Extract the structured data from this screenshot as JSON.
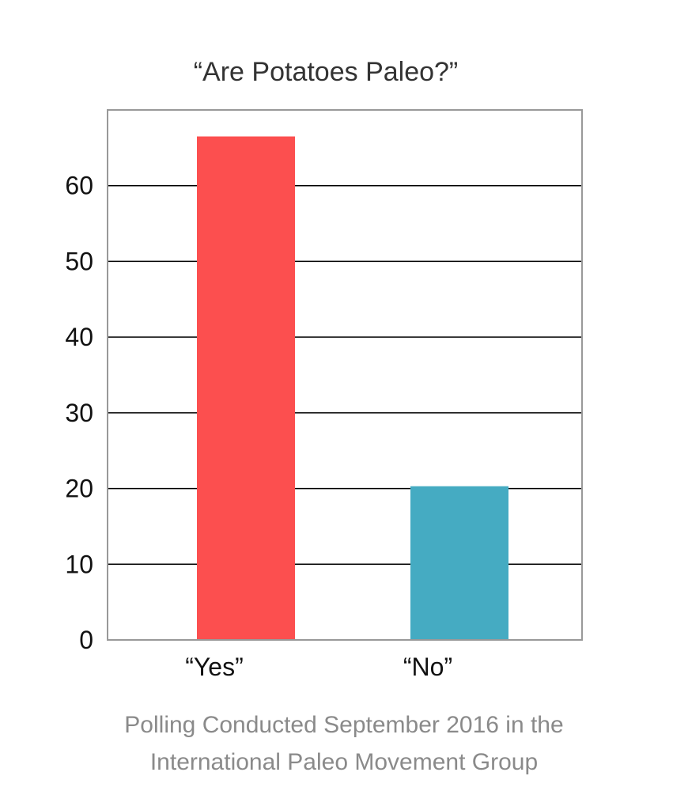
{
  "chart_data": {
    "type": "bar",
    "title": "“Are Potatoes Paleo?”",
    "categories": [
      "“Yes”",
      "“No”"
    ],
    "values": [
      66.5,
      20.3
    ],
    "colors": [
      "#fc4f4f",
      "#45abc2"
    ],
    "ylim": [
      0,
      70
    ],
    "yticks": [
      0,
      10,
      20,
      30,
      40,
      50,
      60
    ],
    "grid": true,
    "xlabel": "",
    "ylabel": ""
  },
  "caption": {
    "line1": "Polling Conducted September 2016 in the",
    "line2": "International Paleo Movement Group"
  }
}
